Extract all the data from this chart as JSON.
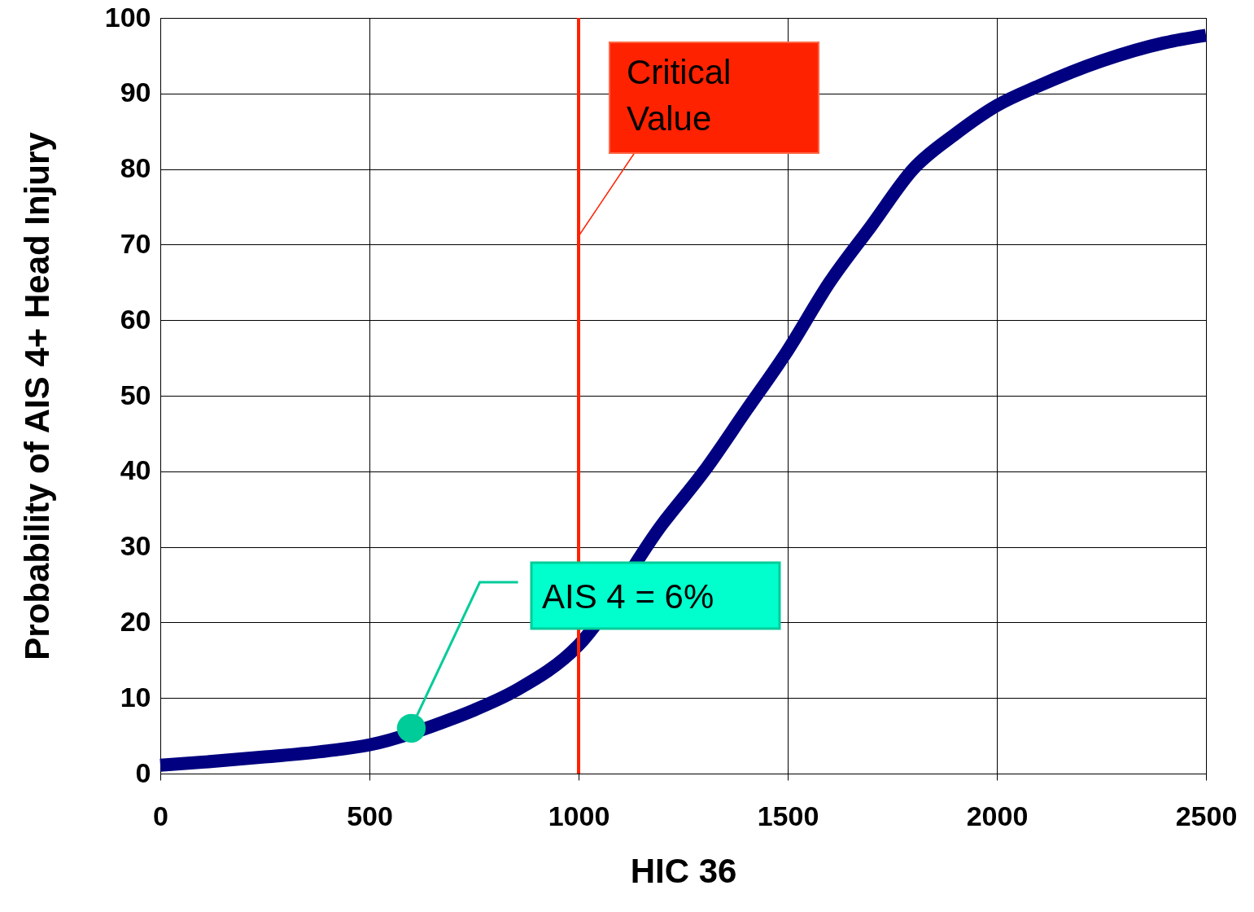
{
  "chart_data": {
    "type": "line",
    "xlabel": "HIC 36",
    "ylabel": "Probability of AIS 4+ Head Injury",
    "x": [
      0,
      100,
      250,
      400,
      500,
      700,
      750,
      850,
      1000,
      1200,
      1300,
      1400,
      1500,
      1600,
      1700,
      1800,
      1900,
      2000,
      2100,
      2250,
      2400,
      2500
    ],
    "series": [
      {
        "color": "#000080",
        "values": [
          1.1,
          1.5,
          2.2,
          3,
          3.8,
          7.3,
          8.4,
          11,
          17,
          33,
          40,
          48,
          56,
          65,
          72.5,
          80,
          84.6,
          88.4,
          91,
          94.3,
          96.7,
          97.7
        ]
      },
      {
        "type": "scatter",
        "color": "#00cc99",
        "x": [
          600
        ],
        "values": [
          6
        ],
        "marker": "circle"
      }
    ],
    "xlim": [
      0,
      2500
    ],
    "xticks": [
      0,
      500,
      1000,
      1500,
      2000,
      2500
    ],
    "ylim": [
      0,
      100
    ],
    "yticks": [
      0,
      10,
      20,
      30,
      40,
      50,
      60,
      70,
      80,
      90,
      100
    ],
    "grid": true,
    "marker": "none",
    "line_style": "solid",
    "ref_lines": [
      {
        "axis": "x",
        "value": 1000,
        "label": "Critical Value",
        "color": "#ff2200"
      }
    ],
    "annotations": [
      {
        "text": "AIS 4 = 6%",
        "x": 600,
        "y": 6
      }
    ]
  }
}
